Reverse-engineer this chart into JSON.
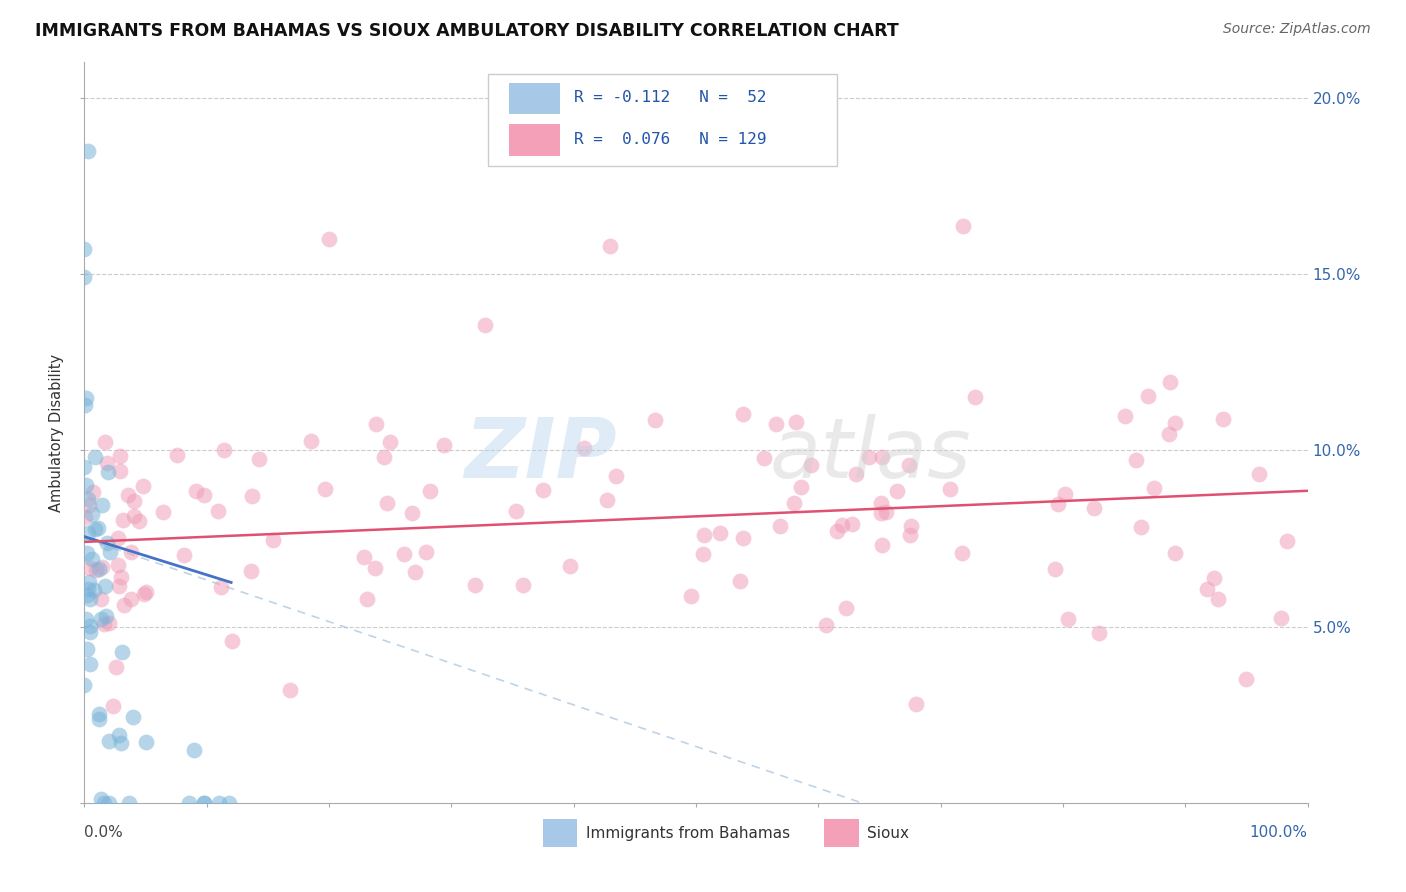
{
  "title": "IMMIGRANTS FROM BAHAMAS VS SIOUX AMBULATORY DISABILITY CORRELATION CHART",
  "source": "Source: ZipAtlas.com",
  "ylabel": "Ambulatory Disability",
  "scatter_color_blue": "#7ab3d8",
  "scatter_color_pink": "#f0a0b8",
  "line_color_blue": "#4472c4",
  "line_color_pink": "#e05070",
  "dashed_color": "#b0c8e0",
  "background_color": "#ffffff",
  "grid_color": "#cccccc",
  "R_blue": -0.112,
  "N_blue": 52,
  "R_pink": 0.076,
  "N_pink": 129,
  "ylim_max": 0.21,
  "xlim_max": 1.0
}
